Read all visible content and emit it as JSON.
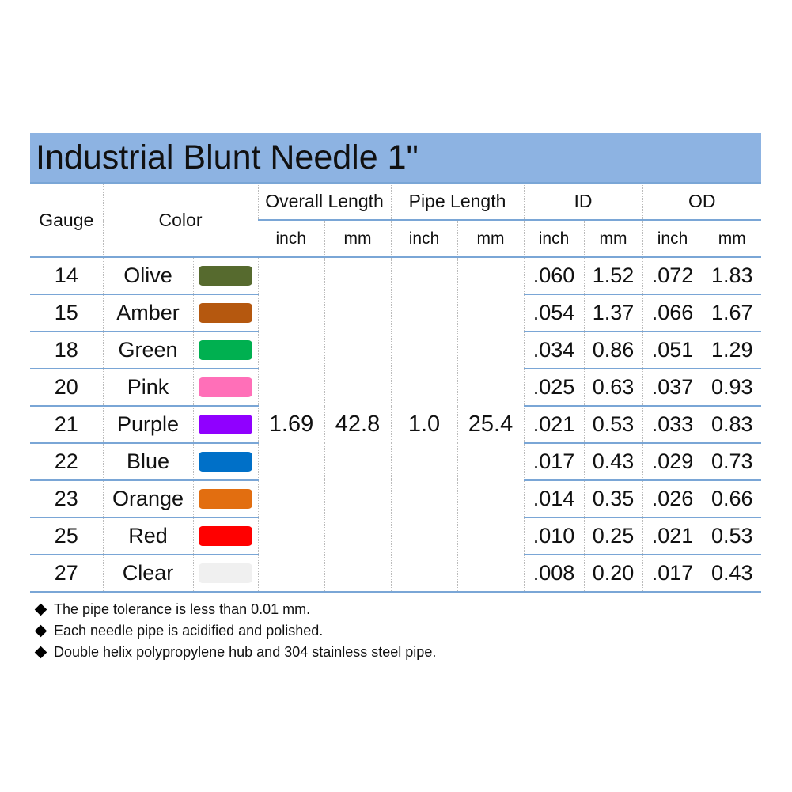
{
  "title": "Industrial Blunt Needle 1\"",
  "header": {
    "gauge": "Gauge",
    "color": "Color",
    "groups": [
      "Overall Length",
      "Pipe Length",
      "ID",
      "OD"
    ],
    "units": [
      "inch",
      "mm",
      "inch",
      "mm",
      "inch",
      "mm",
      "inch",
      "mm"
    ]
  },
  "shared": {
    "overall_inch": "1.69",
    "overall_mm": "42.8",
    "pipe_inch": "1.0",
    "pipe_mm": "25.4"
  },
  "rows": [
    {
      "gauge": "14",
      "color": "Olive",
      "swatch": "#566a2e",
      "id_inch": ".060",
      "id_mm": "1.52",
      "od_inch": ".072",
      "od_mm": "1.83"
    },
    {
      "gauge": "15",
      "color": "Amber",
      "swatch": "#b5580f",
      "id_inch": ".054",
      "id_mm": "1.37",
      "od_inch": ".066",
      "od_mm": "1.67"
    },
    {
      "gauge": "18",
      "color": "Green",
      "swatch": "#00b050",
      "id_inch": ".034",
      "id_mm": "0.86",
      "od_inch": ".051",
      "od_mm": "1.29"
    },
    {
      "gauge": "20",
      "color": "Pink",
      "swatch": "#ff6fb8",
      "id_inch": ".025",
      "id_mm": "0.63",
      "od_inch": ".037",
      "od_mm": "0.93"
    },
    {
      "gauge": "21",
      "color": "Purple",
      "swatch": "#9000ff",
      "id_inch": ".021",
      "id_mm": "0.53",
      "od_inch": ".033",
      "od_mm": "0.83"
    },
    {
      "gauge": "22",
      "color": "Blue",
      "swatch": "#0070c8",
      "id_inch": ".017",
      "id_mm": "0.43",
      "od_inch": ".029",
      "od_mm": "0.73"
    },
    {
      "gauge": "23",
      "color": "Orange",
      "swatch": "#e26e10",
      "id_inch": ".014",
      "id_mm": "0.35",
      "od_inch": ".026",
      "od_mm": "0.66"
    },
    {
      "gauge": "25",
      "color": "Red",
      "swatch": "#ff0000",
      "id_inch": ".010",
      "id_mm": "0.25",
      "od_inch": ".021",
      "od_mm": "0.53"
    },
    {
      "gauge": "27",
      "color": "Clear",
      "swatch": "#f0f0f0",
      "id_inch": ".008",
      "id_mm": "0.20",
      "od_inch": ".017",
      "od_mm": "0.43"
    }
  ],
  "notes": [
    "The pipe tolerance is less than 0.01 mm.",
    "Each needle pipe is acidified and polished.",
    "Double helix polypropylene hub and 304 stainless steel pipe."
  ]
}
